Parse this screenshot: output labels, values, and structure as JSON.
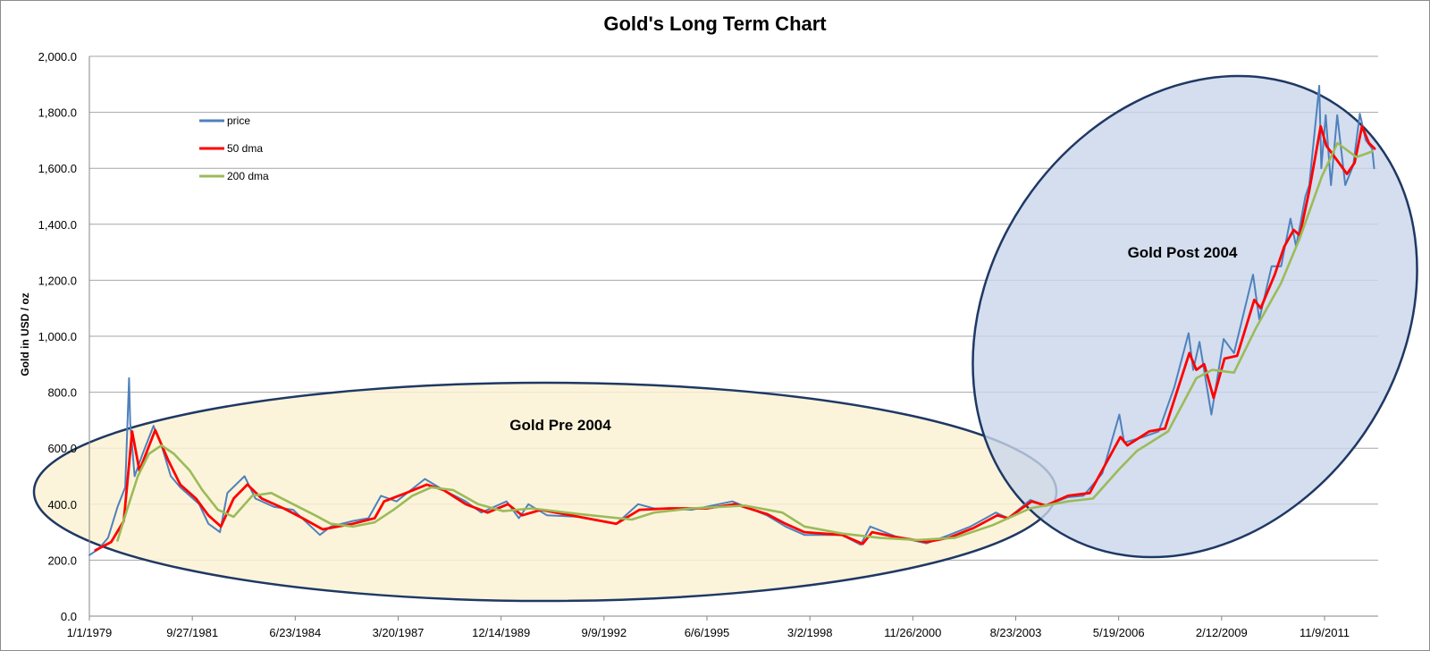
{
  "chart_data": {
    "type": "line",
    "title": "Gold's Long Term Chart",
    "xlabel": "",
    "ylabel": "Gold in USD / oz",
    "ylim": [
      0,
      2000
    ],
    "y_ticks": [
      "0.0",
      "200.0",
      "400.0",
      "600.0",
      "800.0",
      "1,000.0",
      "1,200.0",
      "1,400.0",
      "1,600.0",
      "1,800.0",
      "2,000.0"
    ],
    "x_ticks": [
      "1/1/1979",
      "9/27/1981",
      "6/23/1984",
      "3/20/1987",
      "12/14/1989",
      "9/9/1992",
      "6/6/1995",
      "3/2/1998",
      "11/26/2000",
      "8/23/2003",
      "5/19/2006",
      "2/12/2009",
      "11/9/2011"
    ],
    "x_range": [
      "1979-01-01",
      "2013-03-31"
    ],
    "grid": true,
    "legend_position": "top-left",
    "series": [
      {
        "name": "price",
        "color": "#4f81bd",
        "points": [
          [
            "1979-01-01",
            218
          ],
          [
            "1979-04-01",
            240
          ],
          [
            "1979-07-01",
            280
          ],
          [
            "1979-10-01",
            390
          ],
          [
            "1979-12-15",
            460
          ],
          [
            "1980-01-21",
            850
          ],
          [
            "1980-02-01",
            690
          ],
          [
            "1980-03-15",
            500
          ],
          [
            "1980-06-01",
            580
          ],
          [
            "1980-09-15",
            680
          ],
          [
            "1980-12-01",
            610
          ],
          [
            "1981-03-01",
            500
          ],
          [
            "1981-06-01",
            460
          ],
          [
            "1981-09-01",
            430
          ],
          [
            "1981-12-01",
            400
          ],
          [
            "1982-03-01",
            330
          ],
          [
            "1982-06-21",
            300
          ],
          [
            "1982-09-01",
            440
          ],
          [
            "1983-02-15",
            500
          ],
          [
            "1983-06-01",
            420
          ],
          [
            "1983-12-01",
            390
          ],
          [
            "1984-06-01",
            380
          ],
          [
            "1985-02-15",
            290
          ],
          [
            "1985-06-01",
            320
          ],
          [
            "1986-01-01",
            340
          ],
          [
            "1986-06-01",
            350
          ],
          [
            "1986-10-01",
            430
          ],
          [
            "1987-03-01",
            410
          ],
          [
            "1987-12-01",
            490
          ],
          [
            "1988-06-01",
            450
          ],
          [
            "1989-01-01",
            410
          ],
          [
            "1989-06-01",
            370
          ],
          [
            "1990-02-01",
            410
          ],
          [
            "1990-06-01",
            350
          ],
          [
            "1990-09-01",
            400
          ],
          [
            "1991-03-01",
            360
          ],
          [
            "1992-01-01",
            355
          ],
          [
            "1993-01-01",
            330
          ],
          [
            "1993-08-01",
            400
          ],
          [
            "1994-01-01",
            385
          ],
          [
            "1995-01-01",
            380
          ],
          [
            "1996-02-01",
            410
          ],
          [
            "1997-01-01",
            360
          ],
          [
            "1997-07-01",
            320
          ],
          [
            "1998-01-01",
            290
          ],
          [
            "1999-01-01",
            290
          ],
          [
            "1999-07-01",
            255
          ],
          [
            "1999-10-01",
            320
          ],
          [
            "2000-06-01",
            285
          ],
          [
            "2001-04-01",
            260
          ],
          [
            "2001-10-01",
            285
          ],
          [
            "2002-06-01",
            320
          ],
          [
            "2003-02-01",
            370
          ],
          [
            "2003-06-01",
            350
          ],
          [
            "2004-01-01",
            415
          ],
          [
            "2004-06-01",
            395
          ],
          [
            "2005-01-01",
            425
          ],
          [
            "2005-06-01",
            430
          ],
          [
            "2005-12-01",
            510
          ],
          [
            "2006-05-15",
            720
          ],
          [
            "2006-07-01",
            620
          ],
          [
            "2007-01-01",
            640
          ],
          [
            "2007-06-01",
            660
          ],
          [
            "2007-11-01",
            820
          ],
          [
            "2008-03-17",
            1011
          ],
          [
            "2008-05-01",
            880
          ],
          [
            "2008-07-01",
            980
          ],
          [
            "2008-10-24",
            720
          ],
          [
            "2009-02-20",
            990
          ],
          [
            "2009-06-01",
            940
          ],
          [
            "2009-12-03",
            1220
          ],
          [
            "2010-02-01",
            1060
          ],
          [
            "2010-06-01",
            1250
          ],
          [
            "2010-09-01",
            1250
          ],
          [
            "2010-12-01",
            1420
          ],
          [
            "2011-01-25",
            1320
          ],
          [
            "2011-04-25",
            1500
          ],
          [
            "2011-06-01",
            1540
          ],
          [
            "2011-09-06",
            1895
          ],
          [
            "2011-09-26",
            1600
          ],
          [
            "2011-11-08",
            1790
          ],
          [
            "2011-12-29",
            1540
          ],
          [
            "2012-02-28",
            1790
          ],
          [
            "2012-05-16",
            1540
          ],
          [
            "2012-08-01",
            1610
          ],
          [
            "2012-10-04",
            1795
          ],
          [
            "2012-12-01",
            1700
          ],
          [
            "2013-02-01",
            1670
          ],
          [
            "2013-02-20",
            1600
          ]
        ]
      },
      {
        "name": "50 dma",
        "color": "#ff0000",
        "points": [
          [
            "1979-03-01",
            235
          ],
          [
            "1979-08-01",
            265
          ],
          [
            "1979-12-01",
            340
          ],
          [
            "1980-02-20",
            660
          ],
          [
            "1980-05-01",
            520
          ],
          [
            "1980-10-01",
            665
          ],
          [
            "1981-02-01",
            560
          ],
          [
            "1981-06-01",
            470
          ],
          [
            "1981-11-01",
            420
          ],
          [
            "1982-03-01",
            360
          ],
          [
            "1982-07-01",
            320
          ],
          [
            "1982-11-01",
            420
          ],
          [
            "1983-03-15",
            470
          ],
          [
            "1983-08-01",
            420
          ],
          [
            "1984-03-01",
            385
          ],
          [
            "1984-09-01",
            350
          ],
          [
            "1985-03-15",
            310
          ],
          [
            "1986-01-01",
            330
          ],
          [
            "1986-08-01",
            350
          ],
          [
            "1986-11-01",
            410
          ],
          [
            "1987-06-01",
            440
          ],
          [
            "1987-12-20",
            470
          ],
          [
            "1988-06-01",
            450
          ],
          [
            "1989-01-01",
            400
          ],
          [
            "1989-08-01",
            370
          ],
          [
            "1990-02-15",
            400
          ],
          [
            "1990-07-01",
            360
          ],
          [
            "1991-01-01",
            380
          ],
          [
            "1992-01-01",
            355
          ],
          [
            "1993-01-01",
            330
          ],
          [
            "1993-08-15",
            380
          ],
          [
            "1994-06-01",
            385
          ],
          [
            "1995-06-01",
            385
          ],
          [
            "1996-03-01",
            400
          ],
          [
            "1997-01-01",
            365
          ],
          [
            "1997-07-01",
            330
          ],
          [
            "1998-01-01",
            300
          ],
          [
            "1999-01-01",
            290
          ],
          [
            "1999-07-20",
            258
          ],
          [
            "1999-10-20",
            300
          ],
          [
            "2000-06-01",
            283
          ],
          [
            "2001-04-01",
            265
          ],
          [
            "2001-11-01",
            280
          ],
          [
            "2002-07-01",
            315
          ],
          [
            "2003-02-15",
            360
          ],
          [
            "2003-06-01",
            350
          ],
          [
            "2004-01-15",
            410
          ],
          [
            "2004-06-01",
            395
          ],
          [
            "2005-01-01",
            430
          ],
          [
            "2005-08-01",
            440
          ],
          [
            "2006-05-25",
            640
          ],
          [
            "2006-08-01",
            610
          ],
          [
            "2007-03-01",
            660
          ],
          [
            "2007-08-01",
            670
          ],
          [
            "2008-03-25",
            940
          ],
          [
            "2008-06-01",
            880
          ],
          [
            "2008-08-15",
            900
          ],
          [
            "2008-11-15",
            780
          ],
          [
            "2009-03-01",
            920
          ],
          [
            "2009-07-01",
            930
          ],
          [
            "2009-12-15",
            1130
          ],
          [
            "2010-02-15",
            1100
          ],
          [
            "2010-07-01",
            1220
          ],
          [
            "2010-10-01",
            1320
          ],
          [
            "2011-01-01",
            1380
          ],
          [
            "2011-03-01",
            1360
          ],
          [
            "2011-06-01",
            1520
          ],
          [
            "2011-09-20",
            1750
          ],
          [
            "2011-11-15",
            1680
          ],
          [
            "2012-01-15",
            1650
          ],
          [
            "2012-06-01",
            1580
          ],
          [
            "2012-08-15",
            1620
          ],
          [
            "2012-10-25",
            1750
          ],
          [
            "2013-01-01",
            1690
          ],
          [
            "2013-02-25",
            1670
          ]
        ]
      },
      {
        "name": "200 dma",
        "color": "#9bbb59",
        "points": [
          [
            "1979-10-01",
            270
          ],
          [
            "1980-01-01",
            380
          ],
          [
            "1980-04-15",
            500
          ],
          [
            "1980-08-01",
            580
          ],
          [
            "1980-12-01",
            610
          ],
          [
            "1981-04-01",
            580
          ],
          [
            "1981-09-01",
            520
          ],
          [
            "1982-01-01",
            450
          ],
          [
            "1982-06-01",
            380
          ],
          [
            "1982-11-01",
            355
          ],
          [
            "1983-05-01",
            430
          ],
          [
            "1983-11-01",
            440
          ],
          [
            "1984-06-01",
            400
          ],
          [
            "1985-01-01",
            360
          ],
          [
            "1985-06-01",
            330
          ],
          [
            "1986-01-01",
            320
          ],
          [
            "1986-08-01",
            335
          ],
          [
            "1987-02-01",
            380
          ],
          [
            "1987-08-01",
            430
          ],
          [
            "1988-02-01",
            460
          ],
          [
            "1988-09-01",
            450
          ],
          [
            "1989-05-01",
            400
          ],
          [
            "1990-01-01",
            375
          ],
          [
            "1990-10-01",
            385
          ],
          [
            "1992-01-01",
            365
          ],
          [
            "1993-06-01",
            345
          ],
          [
            "1994-01-01",
            370
          ],
          [
            "1995-01-01",
            385
          ],
          [
            "1996-06-01",
            395
          ],
          [
            "1997-06-01",
            370
          ],
          [
            "1998-01-01",
            320
          ],
          [
            "1999-01-01",
            295
          ],
          [
            "2000-01-01",
            280
          ],
          [
            "2001-01-01",
            272
          ],
          [
            "2002-01-01",
            280
          ],
          [
            "2003-01-01",
            325
          ],
          [
            "2004-01-01",
            385
          ],
          [
            "2005-01-01",
            410
          ],
          [
            "2005-09-01",
            420
          ],
          [
            "2006-05-01",
            520
          ],
          [
            "2006-11-01",
            590
          ],
          [
            "2007-09-01",
            660
          ],
          [
            "2008-06-01",
            850
          ],
          [
            "2008-11-01",
            880
          ],
          [
            "2009-06-01",
            870
          ],
          [
            "2010-01-01",
            1030
          ],
          [
            "2010-09-01",
            1190
          ],
          [
            "2011-03-01",
            1350
          ],
          [
            "2011-10-01",
            1570
          ],
          [
            "2012-03-01",
            1690
          ],
          [
            "2012-09-01",
            1640
          ],
          [
            "2013-02-01",
            1660
          ]
        ]
      }
    ],
    "annotations": [
      {
        "text": "Gold Pre 2004",
        "fill": "#faf2d4",
        "stroke": "#1f3864"
      },
      {
        "text": "Gold Post 2004",
        "fill": "#c9d6ea",
        "stroke": "#1f3864"
      }
    ]
  }
}
